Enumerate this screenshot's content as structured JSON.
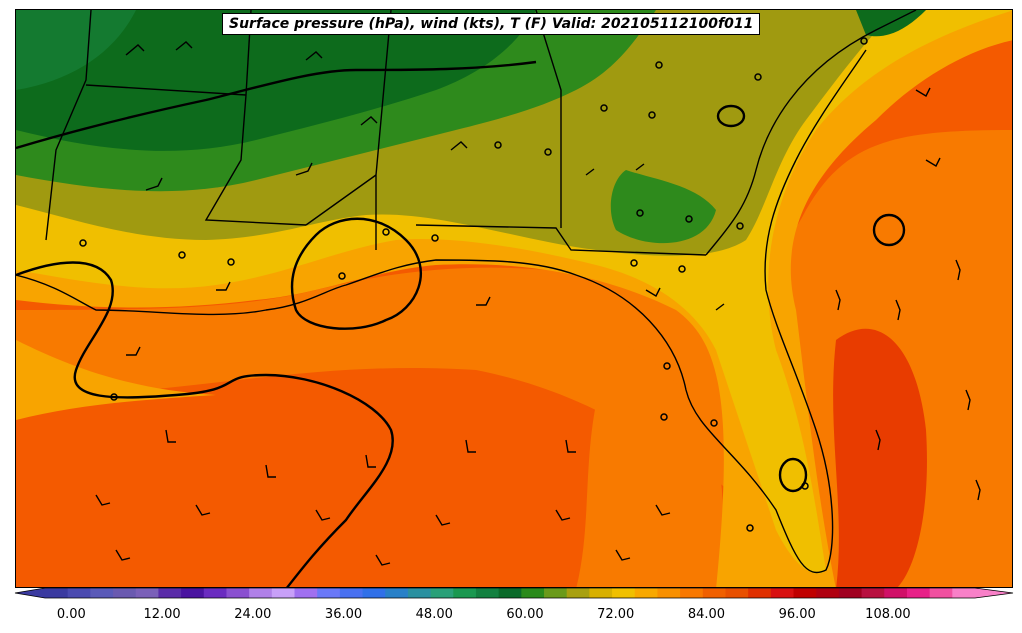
{
  "title": "Surface pressure (hPa), wind (kts), T (F) Valid: 202105112100f011",
  "colorbar": {
    "tick_labels": [
      "0.00",
      "12.00",
      "24.00",
      "36.00",
      "48.00",
      "60.00",
      "72.00",
      "84.00",
      "96.00",
      "108.00"
    ],
    "colors": [
      "#3a3aa0",
      "#4a4ab0",
      "#5a5ab8",
      "#6a5ab0",
      "#7a60b8",
      "#5a2ca8",
      "#4a14a0",
      "#6a2cc0",
      "#8a50d0",
      "#b080e8",
      "#c8a0f8",
      "#a070f0",
      "#6a78f8",
      "#4870f0",
      "#3070e8",
      "#2880c8",
      "#2a90a0",
      "#2aa078",
      "#1a9850",
      "#128040",
      "#0a6a2a",
      "#2a8a1a",
      "#6a9a1a",
      "#a8a010",
      "#d8b000",
      "#f0c000",
      "#f8a800",
      "#f89000",
      "#f87800",
      "#f06000",
      "#e85000",
      "#e03000",
      "#d81010",
      "#c00000",
      "#b00010",
      "#a00020",
      "#b81040",
      "#d01068",
      "#e82088",
      "#f050a0",
      "#f880c8"
    ],
    "colors_note": "segment fill colours, low to high"
  },
  "legend_labels": {
    "temperature_units": "F"
  },
  "colors": {
    "cold_green": "#0d6b1c",
    "mid_green": "#2e8a1c",
    "olive": "#a09a10",
    "yellow": "#f0bf00",
    "light_orange": "#f8a400",
    "orange": "#f87a00",
    "deep_orange": "#f45a00",
    "red_orange": "#e83c00"
  },
  "icons": [
    "wind-barb-icon",
    "calm-circle-icon",
    "isobar-contour"
  ]
}
